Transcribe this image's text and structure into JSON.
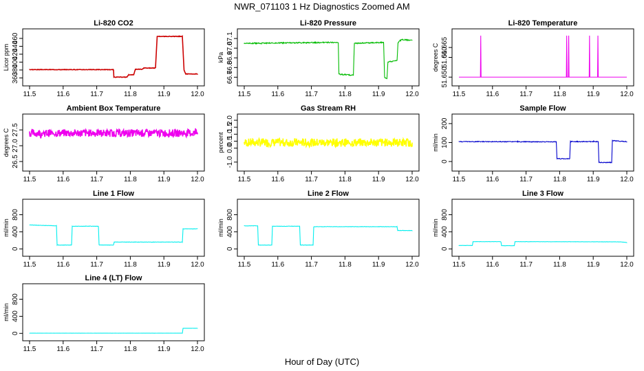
{
  "figure": {
    "title": "NWR_071103  1 Hz Diagnostics Zoomed AM",
    "xlabel": "Hour of Day (UTC)"
  },
  "chart_data": [
    {
      "type": "line",
      "title": "Li-820 CO2",
      "ylabel": "Licor ppm",
      "color": "#cc0000",
      "x_ticks": [
        "11.5",
        "11.6",
        "11.7",
        "11.8",
        "11.9",
        "12.0"
      ],
      "y_ticks": [
        "360",
        "380",
        "400",
        "420",
        "440",
        "460"
      ],
      "xlim": [
        11.5,
        12.0
      ],
      "ylim": [
        352,
        472
      ],
      "noise": 0.6,
      "x": [
        11.5,
        11.75,
        11.751,
        11.79,
        11.795,
        11.81,
        11.815,
        11.835,
        11.84,
        11.875,
        11.88,
        11.955,
        11.96,
        11.965,
        12.0
      ],
      "y": [
        381,
        381,
        362,
        362,
        368,
        368,
        382,
        382,
        385,
        385,
        465,
        465,
        380,
        370,
        370
      ]
    },
    {
      "type": "line",
      "title": "Li-820 Pressure",
      "ylabel": "kPa",
      "color": "#00bb00",
      "x_ticks": [
        "11.5",
        "11.6",
        "11.7",
        "11.8",
        "11.9",
        "12.0"
      ],
      "y_ticks": [
        "66.7",
        "66.8",
        "66.9",
        "67.0",
        "67.1"
      ],
      "xlim": [
        11.5,
        12.0
      ],
      "ylim": [
        66.66,
        67.15
      ],
      "noise": 0.006,
      "x": [
        11.5,
        11.78,
        11.782,
        11.825,
        11.828,
        11.915,
        11.918,
        11.925,
        11.928,
        11.955,
        11.958,
        11.965,
        11.97,
        12.0
      ],
      "y": [
        67.05,
        67.06,
        66.73,
        66.72,
        67.05,
        67.06,
        66.7,
        66.69,
        66.86,
        66.87,
        67.06,
        67.08,
        67.09,
        67.08
      ]
    },
    {
      "type": "line",
      "title": "Li-820 Temperature",
      "ylabel": "degrees C",
      "color": "#ee00ee",
      "x_ticks": [
        "11.5",
        "11.6",
        "11.7",
        "11.8",
        "11.9",
        "12.0"
      ],
      "y_ticks": [
        "51.650",
        "51.660",
        "51.665"
      ],
      "xlim": [
        11.5,
        12.0
      ],
      "ylim": [
        51.648,
        51.672
      ],
      "noise": 0,
      "x": [
        11.5,
        11.564,
        11.565,
        11.566,
        11.82,
        11.821,
        11.822,
        11.826,
        11.827,
        11.828,
        11.888,
        11.889,
        11.89,
        11.913,
        11.914,
        11.915,
        12.0
      ],
      "y": [
        51.65,
        51.65,
        51.671,
        51.65,
        51.65,
        51.671,
        51.65,
        51.65,
        51.671,
        51.65,
        51.65,
        51.671,
        51.65,
        51.65,
        51.671,
        51.65,
        51.65
      ]
    },
    {
      "type": "line",
      "title": "Ambient Box Temperature",
      "ylabel": "degrees C",
      "color": "#ee00ee",
      "x_ticks": [
        "11.5",
        "11.6",
        "11.7",
        "11.8",
        "11.9",
        "12.0"
      ],
      "y_ticks": [
        "26.5",
        "27.0",
        "27.5"
      ],
      "xlim": [
        11.5,
        12.0
      ],
      "ylim": [
        26.35,
        27.85
      ],
      "noise": 0.12,
      "x": [
        11.5,
        12.0
      ],
      "y": [
        27.4,
        27.4
      ]
    },
    {
      "type": "line",
      "title": "Gas Stream RH",
      "ylabel": "percent",
      "color": "#ffff00",
      "x_ticks": [
        "11.5",
        "11.6",
        "11.7",
        "11.8",
        "11.9",
        "12.0"
      ],
      "y_ticks": [
        "-1.0",
        "0.0",
        "0.5",
        "1.0",
        "1.5",
        "2.0"
      ],
      "xlim": [
        11.5,
        12.0
      ],
      "ylim": [
        -1.3,
        2.1
      ],
      "noise": 0.3,
      "x": [
        11.5,
        12.0
      ],
      "y": [
        0.4,
        0.4
      ]
    },
    {
      "type": "line",
      "title": "Sample Flow",
      "ylabel": "ml/min",
      "color": "#0000cc",
      "x_ticks": [
        "11.5",
        "11.6",
        "11.7",
        "11.8",
        "11.9",
        "12.0"
      ],
      "y_ticks": [
        "0",
        "100",
        "200"
      ],
      "xlim": [
        11.5,
        12.0
      ],
      "ylim": [
        -25,
        225
      ],
      "noise": 2,
      "x": [
        11.5,
        11.79,
        11.792,
        11.83,
        11.832,
        11.915,
        11.917,
        11.955,
        11.957,
        12.0
      ],
      "y": [
        105,
        104,
        15,
        15,
        105,
        105,
        -5,
        -5,
        110,
        105
      ]
    },
    {
      "type": "line",
      "title": "Line 1 Flow",
      "ylabel": "ml/min",
      "color": "#00eeee",
      "x_ticks": [
        "11.5",
        "11.6",
        "11.7",
        "11.8",
        "11.9",
        "12.0"
      ],
      "y_ticks": [
        "0",
        "400",
        "800"
      ],
      "xlim": [
        11.5,
        12.0
      ],
      "ylim": [
        -60,
        1050
      ],
      "noise": 4,
      "x": [
        11.5,
        11.58,
        11.582,
        11.625,
        11.627,
        11.705,
        11.707,
        11.75,
        11.752,
        11.955,
        11.957,
        12.0
      ],
      "y": [
        560,
        540,
        90,
        90,
        530,
        530,
        90,
        90,
        160,
        160,
        470,
        470
      ]
    },
    {
      "type": "line",
      "title": "Line 2 Flow",
      "ylabel": "ml/min",
      "color": "#00eeee",
      "x_ticks": [
        "11.5",
        "11.6",
        "11.7",
        "11.8",
        "11.9",
        "12.0"
      ],
      "y_ticks": [
        "0",
        "400",
        "800"
      ],
      "xlim": [
        11.5,
        12.0
      ],
      "ylim": [
        -60,
        1050
      ],
      "noise": 4,
      "x": [
        11.5,
        11.54,
        11.542,
        11.582,
        11.584,
        11.665,
        11.667,
        11.705,
        11.707,
        11.955,
        11.957,
        12.0
      ],
      "y": [
        540,
        540,
        90,
        90,
        530,
        530,
        90,
        90,
        520,
        520,
        430,
        430
      ]
    },
    {
      "type": "line",
      "title": "Line 3 Flow",
      "ylabel": "ml/min",
      "color": "#00eeee",
      "x_ticks": [
        "11.5",
        "11.6",
        "11.7",
        "11.8",
        "11.9",
        "12.0"
      ],
      "y_ticks": [
        "0",
        "400",
        "800"
      ],
      "xlim": [
        11.5,
        12.0
      ],
      "ylim": [
        -60,
        1050
      ],
      "noise": 3,
      "x": [
        11.5,
        11.54,
        11.542,
        11.625,
        11.627,
        11.665,
        11.667,
        11.98,
        12.0
      ],
      "y": [
        80,
        80,
        170,
        170,
        75,
        75,
        170,
        165,
        150
      ]
    },
    {
      "type": "line",
      "title": "Line 4 (LT) Flow",
      "ylabel": "ml/min",
      "color": "#00eeee",
      "x_ticks": [
        "11.5",
        "11.6",
        "11.7",
        "11.8",
        "11.9",
        "12.0"
      ],
      "y_ticks": [
        "0",
        "400",
        "800"
      ],
      "xlim": [
        11.5,
        12.0
      ],
      "ylim": [
        -60,
        1050
      ],
      "noise": 1,
      "x": [
        11.5,
        11.955,
        11.957,
        12.0
      ],
      "y": [
        5,
        5,
        120,
        120
      ]
    }
  ]
}
